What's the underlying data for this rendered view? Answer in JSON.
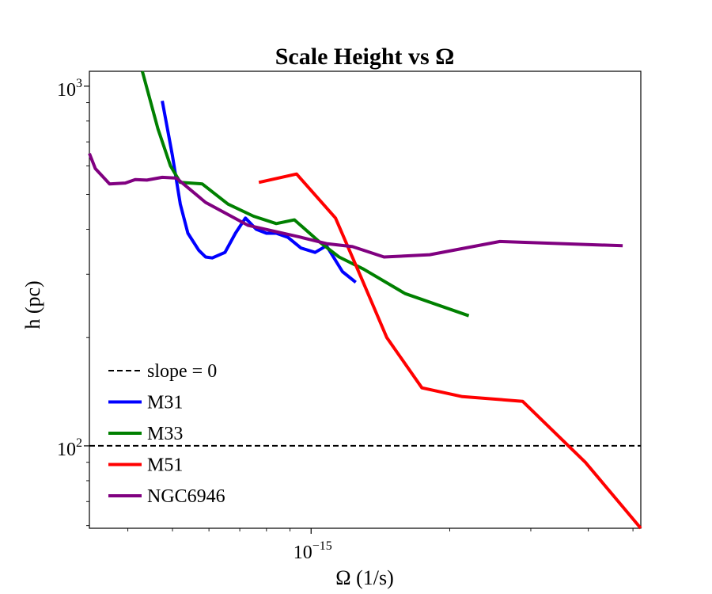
{
  "chart_data": {
    "type": "line",
    "title": "Scale Height vs Ω",
    "xlabel": "Ω (1/s)",
    "ylabel": "h (pc)",
    "xscale": "log",
    "yscale": "log",
    "xlim": [
      3.3e-16,
      5.2e-15
    ],
    "ylim": [
      59,
      1100
    ],
    "x_ticks": [
      {
        "value": 1e-15,
        "base": "10",
        "exp": "−15"
      }
    ],
    "y_ticks": [
      {
        "value": 100,
        "base": "10",
        "exp": "2"
      },
      {
        "value": 1000,
        "base": "10",
        "exp": "3"
      }
    ],
    "legend_position": "lower-left",
    "reference_line": {
      "name": "slope = 0",
      "y": 100,
      "color": "#000000",
      "style": "dashed"
    },
    "series": [
      {
        "name": "M31",
        "color": "#0000ff",
        "x": [
          4.75e-16,
          5e-16,
          5.2e-16,
          5.4e-16,
          5.7e-16,
          5.9e-16,
          6.1e-16,
          6.5e-16,
          6.85e-16,
          7.2e-16,
          7.6e-16,
          8e-16,
          8.4e-16,
          8.9e-16,
          9.5e-16,
          1.02e-15,
          1.08e-15,
          1.17e-15,
          1.25e-15
        ],
        "y": [
          910,
          640,
          470,
          390,
          350,
          335,
          333,
          345,
          390,
          430,
          400,
          390,
          390,
          380,
          355,
          345,
          360,
          305,
          285
        ]
      },
      {
        "name": "M33",
        "color": "#008000",
        "x": [
          4.3e-16,
          4.65e-16,
          4.95e-16,
          5.2e-16,
          5.8e-16,
          6.6e-16,
          7.5e-16,
          8.4e-16,
          9.2e-16,
          1.04e-15,
          1.15e-15,
          1.3e-15,
          1.6e-15,
          2.2e-15
        ],
        "y": [
          1100,
          760,
          600,
          540,
          535,
          470,
          435,
          415,
          425,
          370,
          335,
          310,
          265,
          230
        ]
      },
      {
        "name": "M51",
        "color": "#ff0000",
        "x": [
          7.7e-16,
          9.3e-16,
          1.13e-15,
          1.29e-15,
          1.46e-15,
          1.74e-15,
          2.13e-15,
          2.88e-15,
          3.94e-15,
          5.2e-15
        ],
        "y": [
          540,
          570,
          430,
          290,
          200,
          145,
          137,
          133,
          90,
          59
        ]
      },
      {
        "name": "NGC6946",
        "color": "#800080",
        "x": [
          3.3e-16,
          3.4e-16,
          3.65e-16,
          3.95e-16,
          4.15e-16,
          4.4e-16,
          4.75e-16,
          5.1e-16,
          5.9e-16,
          7.3e-16,
          9.5e-16,
          1.08e-15,
          1.23e-15,
          1.44e-15,
          1.81e-15,
          2.57e-15,
          4.75e-15
        ],
        "y": [
          650,
          590,
          535,
          538,
          550,
          548,
          558,
          555,
          475,
          410,
          380,
          365,
          358,
          335,
          340,
          370,
          360
        ]
      }
    ]
  }
}
